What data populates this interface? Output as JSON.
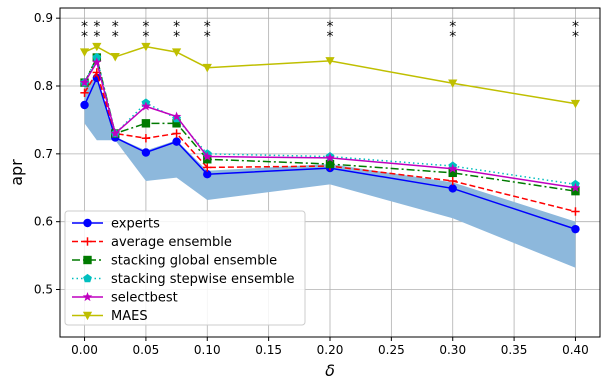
{
  "chart_data": {
    "type": "line",
    "x": [
      0.0,
      0.01,
      0.025,
      0.05,
      0.075,
      0.1,
      0.2,
      0.3,
      0.4
    ],
    "xlabel": "δ",
    "ylabel": "apr",
    "xlim": [
      -0.02,
      0.42
    ],
    "ylim": [
      0.43,
      0.915
    ],
    "xticks": [
      "0.00",
      "0.05",
      "0.10",
      "0.15",
      "0.20",
      "0.25",
      "0.30",
      "0.35",
      "0.40"
    ],
    "xtick_values": [
      0.0,
      0.05,
      0.1,
      0.15,
      0.2,
      0.25,
      0.3,
      0.35,
      0.4
    ],
    "yticks": [
      "0.5",
      "0.6",
      "0.7",
      "0.8",
      "0.9"
    ],
    "ytick_values": [
      0.5,
      0.6,
      0.7,
      0.8,
      0.9
    ],
    "grid": true,
    "legend_position": "lower-left",
    "band": {
      "color": "#8db8dc",
      "lower": [
        0.745,
        0.72,
        0.72,
        0.66,
        0.665,
        0.632,
        0.655,
        0.605,
        0.532
      ],
      "upper": [
        0.8,
        0.815,
        0.725,
        0.705,
        0.72,
        0.675,
        0.685,
        0.658,
        0.6
      ]
    },
    "series": [
      {
        "name": "experts",
        "color": "#0000ff",
        "dash": "",
        "marker": "circle",
        "values": [
          0.772,
          0.812,
          0.724,
          0.702,
          0.718,
          0.67,
          0.679,
          0.649,
          0.589
        ]
      },
      {
        "name": "average ensemble",
        "color": "#ff0000",
        "dash": "6,3",
        "marker": "plus",
        "values": [
          0.79,
          0.82,
          0.73,
          0.723,
          0.73,
          0.68,
          0.682,
          0.66,
          0.615
        ]
      },
      {
        "name": "stacking global ensemble",
        "color": "#007a00",
        "dash": "8,3,2,3",
        "marker": "square",
        "values": [
          0.805,
          0.842,
          0.73,
          0.745,
          0.745,
          0.692,
          0.685,
          0.672,
          0.645
        ]
      },
      {
        "name": "stacking stepwise ensemble",
        "color": "#00bfbf",
        "dash": "1.5,3",
        "marker": "pentagon",
        "values": [
          0.805,
          0.842,
          0.73,
          0.775,
          0.752,
          0.7,
          0.696,
          0.682,
          0.655
        ]
      },
      {
        "name": "selectbest",
        "color": "#bf00bf",
        "dash": "",
        "marker": "star",
        "values": [
          0.805,
          0.835,
          0.73,
          0.77,
          0.755,
          0.696,
          0.694,
          0.678,
          0.65
        ]
      },
      {
        "name": "MAES",
        "color": "#bfbf00",
        "dash": "",
        "marker": "triangle-down",
        "values": [
          0.85,
          0.858,
          0.843,
          0.858,
          0.85,
          0.827,
          0.837,
          0.804,
          0.774
        ]
      }
    ],
    "annotations": {
      "text": "*",
      "x": [
        0.0,
        0.01,
        0.025,
        0.05,
        0.075,
        0.1,
        0.2,
        0.3,
        0.4
      ]
    }
  }
}
